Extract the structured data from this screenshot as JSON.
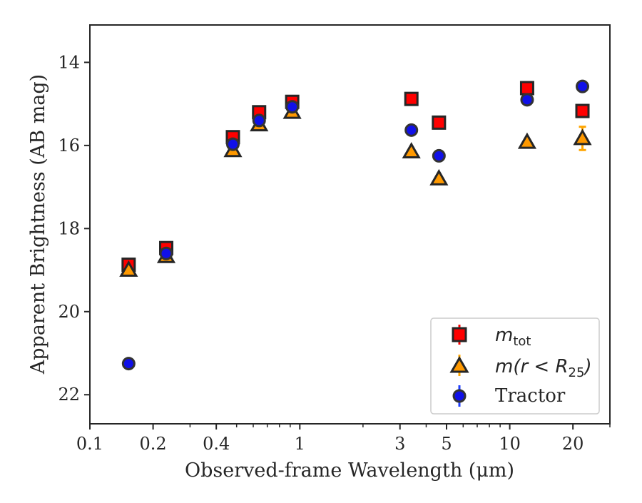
{
  "chart_data": {
    "type": "scatter",
    "title": "",
    "xlabel": "Observed-frame Wavelength (μm)",
    "ylabel": "Apparent Brightness (AB mag)",
    "x_scale": "log",
    "xlim": [
      0.1,
      30
    ],
    "ylim": [
      22.7,
      13.1
    ],
    "y_inverted": true,
    "x_ticks": [
      {
        "value": 0.1,
        "label": "0.1"
      },
      {
        "value": 0.2,
        "label": "0.2"
      },
      {
        "value": 0.4,
        "label": "0.4"
      },
      {
        "value": 1,
        "label": "1"
      },
      {
        "value": 3,
        "label": "3"
      },
      {
        "value": 5,
        "label": "5"
      },
      {
        "value": 10,
        "label": "10"
      },
      {
        "value": 20,
        "label": "20"
      }
    ],
    "y_ticks": [
      {
        "value": 14,
        "label": "14"
      },
      {
        "value": 16,
        "label": "16"
      },
      {
        "value": 18,
        "label": "18"
      },
      {
        "value": 20,
        "label": "20"
      },
      {
        "value": 22,
        "label": "22"
      }
    ],
    "grid": false,
    "legend_position": "lower-right",
    "series": [
      {
        "key": "mtot",
        "marker": "square",
        "face_color": "#ff0000",
        "error_color": "#ff0000",
        "edge_color": "#262626",
        "points": [
          {
            "x": 0.153,
            "y": 18.87,
            "err": 0.04
          },
          {
            "x": 0.231,
            "y": 18.47,
            "err": 0.04
          },
          {
            "x": 0.48,
            "y": 15.8,
            "err": 0.03
          },
          {
            "x": 0.64,
            "y": 15.2,
            "err": 0.03
          },
          {
            "x": 0.92,
            "y": 14.95,
            "err": 0.03
          },
          {
            "x": 3.4,
            "y": 14.88,
            "err": 0.03
          },
          {
            "x": 4.6,
            "y": 15.45,
            "err": 0.03
          },
          {
            "x": 12.1,
            "y": 14.62,
            "err": 0.03
          },
          {
            "x": 22.2,
            "y": 15.17,
            "err": 0.04
          }
        ]
      },
      {
        "key": "mr25",
        "marker": "triangle",
        "face_color": "#ff9900",
        "error_color": "#ffa500",
        "edge_color": "#262626",
        "points": [
          {
            "x": 0.153,
            "y": 19.0,
            "err": 0.04
          },
          {
            "x": 0.231,
            "y": 18.67,
            "err": 0.04
          },
          {
            "x": 0.48,
            "y": 16.12,
            "err": 0.03
          },
          {
            "x": 0.64,
            "y": 15.5,
            "err": 0.03
          },
          {
            "x": 0.92,
            "y": 15.2,
            "err": 0.03
          },
          {
            "x": 3.4,
            "y": 16.15,
            "err": 0.03
          },
          {
            "x": 4.6,
            "y": 16.8,
            "err": 0.04
          },
          {
            "x": 12.1,
            "y": 15.92,
            "err": 0.04
          },
          {
            "x": 22.2,
            "y": 15.83,
            "err": 0.28
          }
        ]
      },
      {
        "key": "tractor",
        "marker": "circle",
        "face_color": "#1010e8",
        "error_color": "#1f3fff",
        "edge_color": "#333333",
        "points": [
          {
            "x": 0.153,
            "y": 21.25,
            "err": 0.05
          },
          {
            "x": 0.231,
            "y": 18.6,
            "err": 0.04
          },
          {
            "x": 0.48,
            "y": 15.97,
            "err": 0.03
          },
          {
            "x": 0.64,
            "y": 15.4,
            "err": 0.03
          },
          {
            "x": 0.92,
            "y": 15.07,
            "err": 0.03
          },
          {
            "x": 3.4,
            "y": 15.63,
            "err": 0.03
          },
          {
            "x": 4.6,
            "y": 16.25,
            "err": 0.03
          },
          {
            "x": 12.1,
            "y": 14.9,
            "err": 0.03
          },
          {
            "x": 22.2,
            "y": 14.58,
            "err": 0.03
          }
        ]
      }
    ]
  },
  "legend": {
    "mtot": {
      "base": "m",
      "sub": "tot"
    },
    "mr25": {
      "base": "m(r < R",
      "sub": "25",
      "tail": ")"
    },
    "tractor": {
      "label": "Tractor"
    }
  }
}
